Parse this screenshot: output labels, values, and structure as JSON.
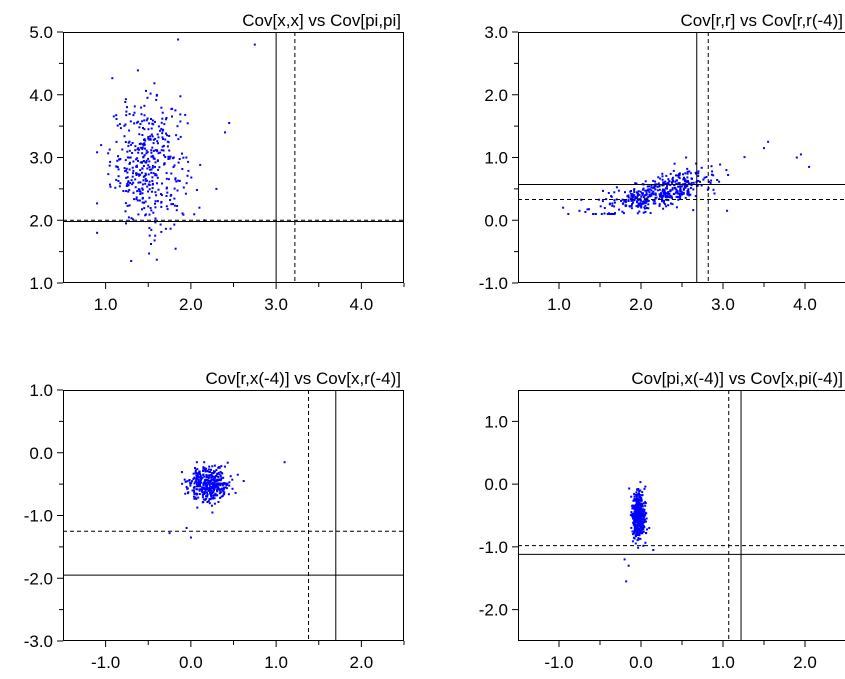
{
  "colors": {
    "points": "#0000ff",
    "axis": "#000000",
    "background": "#ffffff"
  },
  "chart_data": [
    {
      "type": "scatter",
      "title": "Cov[x,x]  vs  Cov[pi,pi]",
      "xlim": [
        0.5,
        4.5
      ],
      "ylim": [
        1.0,
        5.0
      ],
      "xticks": [
        1.0,
        2.0,
        3.0,
        4.0
      ],
      "xtick_labels": [
        "1.0",
        "2.0",
        "3.0",
        "4.0"
      ],
      "yticks": [
        1.0,
        2.0,
        3.0,
        4.0,
        5.0
      ],
      "ytick_labels": [
        "1.0",
        "2.0",
        "3.0",
        "4.0",
        "5.0"
      ],
      "reference_lines": {
        "solid": {
          "x": 3.0,
          "y": 1.98
        },
        "dashed": {
          "x": 3.22,
          "y": 2.0
        }
      },
      "cloud": {
        "points": 420,
        "center": [
          1.5,
          2.9
        ],
        "spread": [
          0.22,
          0.5
        ],
        "x_range": [
          0.9,
          2.5
        ],
        "y_range": [
          1.3,
          4.9
        ]
      },
      "series": [
        {
          "extra_points": [
            [
              2.75,
              4.8
            ],
            [
              1.85,
              4.88
            ],
            [
              2.4,
              3.4
            ],
            [
              2.3,
              2.5
            ],
            [
              2.1,
              2.2
            ],
            [
              0.9,
              1.8
            ],
            [
              1.3,
              1.35
            ],
            [
              2.45,
              3.55
            ]
          ]
        }
      ]
    },
    {
      "type": "scatter",
      "title": "Cov[r,r]  vs  Cov[r,r(-4)]",
      "xlim": [
        0.5,
        4.5
      ],
      "ylim": [
        -1.0,
        3.0
      ],
      "xticks": [
        1.0,
        2.0,
        3.0,
        4.0
      ],
      "xtick_labels": [
        "1.0",
        "2.0",
        "3.0",
        "4.0"
      ],
      "yticks": [
        -1.0,
        0.0,
        1.0,
        2.0,
        3.0
      ],
      "ytick_labels": [
        "-1.0",
        "0.0",
        "1.0",
        "2.0",
        "3.0"
      ],
      "reference_lines": {
        "solid": {
          "x": 2.68,
          "y": 0.57
        },
        "dashed": {
          "x": 2.82,
          "y": 0.33
        }
      },
      "cloud": {
        "points": 450,
        "center": [
          2.2,
          0.4
        ],
        "spread": [
          0.35,
          0.12
        ],
        "trend": {
          "slope": 0.35,
          "origin_x": 2.1
        },
        "x_range": [
          1.0,
          4.1
        ],
        "y_range": [
          0.1,
          1.3
        ]
      },
      "series": [
        {
          "extra_points": [
            [
              1.05,
              0.2
            ],
            [
              1.25,
              0.15
            ],
            [
              3.55,
              1.25
            ],
            [
              3.5,
              1.15
            ],
            [
              3.9,
              1.0
            ],
            [
              4.05,
              0.85
            ],
            [
              3.95,
              1.05
            ],
            [
              3.05,
              0.15
            ],
            [
              2.55,
              1.0
            ]
          ]
        }
      ]
    },
    {
      "type": "scatter",
      "title": "Cov[r,x(-4)]  vs  Cov[x,r(-4)]",
      "xlim": [
        -1.5,
        2.5
      ],
      "ylim": [
        -3.0,
        1.0
      ],
      "xticks": [
        -1.0,
        0.0,
        1.0,
        2.0
      ],
      "xtick_labels": [
        "-1.0",
        "0.0",
        "1.0",
        "2.0"
      ],
      "yticks": [
        -3.0,
        -2.0,
        -1.0,
        0.0,
        1.0
      ],
      "ytick_labels": [
        "-3.0",
        "-2.0",
        "-1.0",
        "0.0",
        "1.0"
      ],
      "reference_lines": {
        "solid": {
          "x": 1.7,
          "y": -1.95
        },
        "dashed": {
          "x": 1.38,
          "y": -1.25
        }
      },
      "cloud": {
        "points": 380,
        "center": [
          0.22,
          -0.5
        ],
        "spread": [
          0.12,
          0.14
        ],
        "x_range": [
          -0.3,
          0.7
        ],
        "y_range": [
          -1.4,
          -0.15
        ]
      },
      "series": [
        {
          "extra_points": [
            [
              1.1,
              -0.15
            ],
            [
              -0.25,
              -1.28
            ],
            [
              0.0,
              -1.35
            ],
            [
              0.55,
              -0.35
            ],
            [
              0.62,
              -0.45
            ],
            [
              -0.05,
              -1.2
            ]
          ]
        }
      ]
    },
    {
      "type": "scatter",
      "title": "Cov[pi,x(-4)]  vs  Cov[x,pi(-4)]",
      "xlim": [
        -1.5,
        2.5
      ],
      "ylim": [
        -2.5,
        1.5
      ],
      "xticks": [
        -1.0,
        0.0,
        1.0,
        2.0
      ],
      "xtick_labels": [
        "-1.0",
        "0.0",
        "1.0",
        "2.0"
      ],
      "yticks": [
        -2.0,
        -1.0,
        0.0,
        1.0
      ],
      "ytick_labels": [
        "-2.0",
        "-1.0",
        "0.0",
        "1.0"
      ],
      "reference_lines": {
        "solid": {
          "x": 1.22,
          "y": -1.12
        },
        "dashed": {
          "x": 1.07,
          "y": -0.98
        }
      },
      "cloud": {
        "points": 420,
        "center": [
          -0.03,
          -0.5
        ],
        "spread": [
          0.04,
          0.2
        ],
        "x_range": [
          -0.22,
          0.18
        ],
        "y_range": [
          -1.6,
          0.05
        ]
      },
      "series": [
        {
          "extra_points": [
            [
              -0.18,
              -1.55
            ],
            [
              -0.15,
              -1.3
            ],
            [
              0.15,
              -1.05
            ],
            [
              -0.2,
              -1.2
            ],
            [
              0.1,
              -0.7
            ],
            [
              -0.12,
              -0.2
            ]
          ]
        }
      ]
    }
  ]
}
